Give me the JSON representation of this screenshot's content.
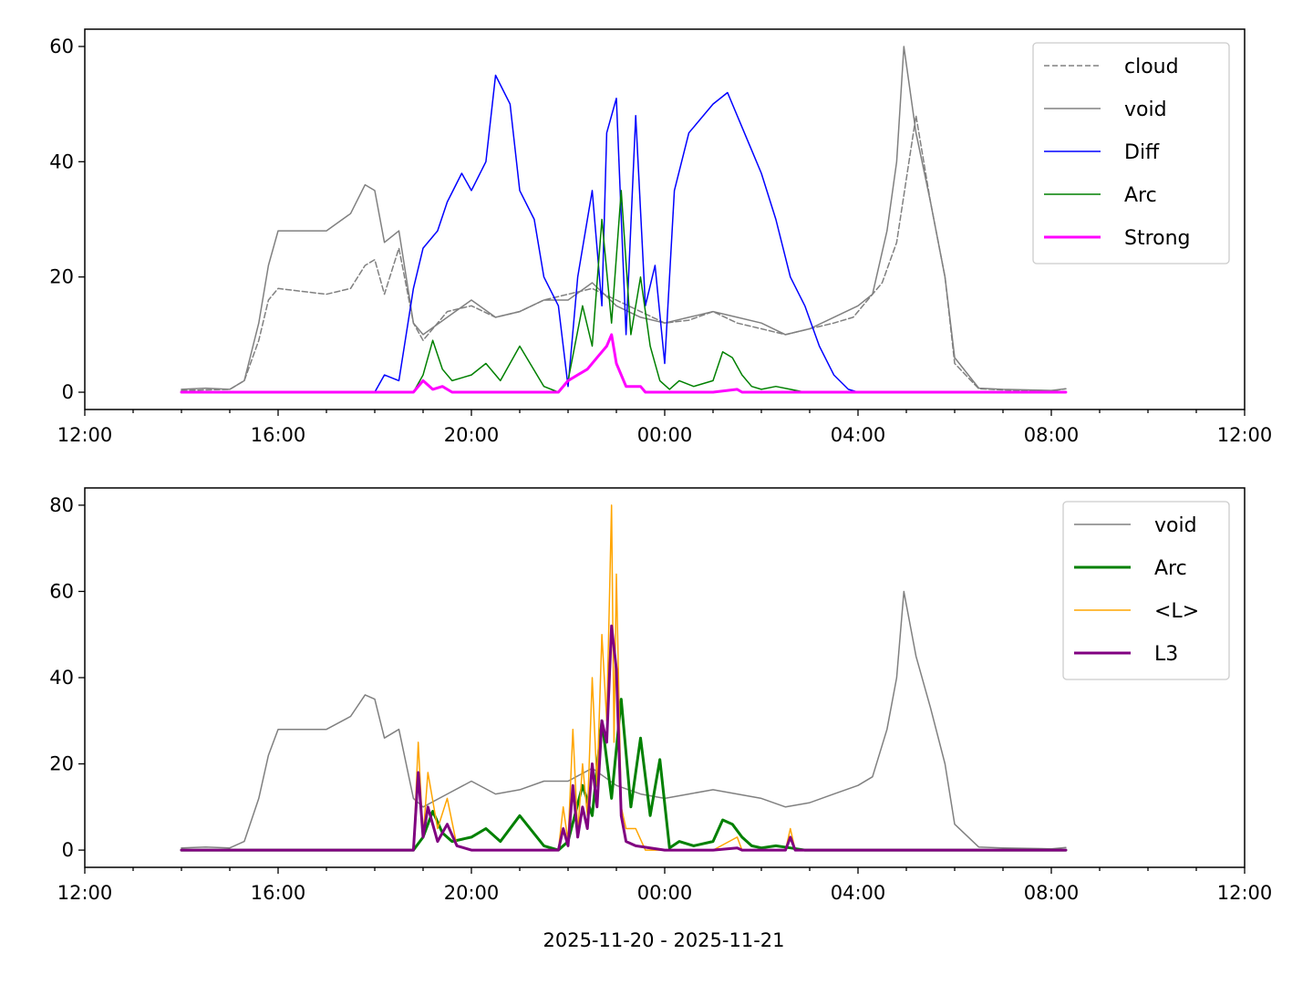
{
  "chart_data": [
    {
      "type": "line",
      "title": "",
      "xlabel": "",
      "ylabel": "",
      "x_unit": "hours since 2025-11-20 00:00",
      "xlim": [
        12,
        36
      ],
      "ylim": [
        -3,
        63
      ],
      "x_ticks": [
        {
          "value": 12,
          "label": "12:00"
        },
        {
          "value": 16,
          "label": "16:00"
        },
        {
          "value": 20,
          "label": "20:00"
        },
        {
          "value": 24,
          "label": "00:00"
        },
        {
          "value": 28,
          "label": "04:00"
        },
        {
          "value": 32,
          "label": "08:00"
        },
        {
          "value": 36,
          "label": "12:00"
        }
      ],
      "y_ticks": [
        {
          "value": 0,
          "label": "0"
        },
        {
          "value": 20,
          "label": "20"
        },
        {
          "value": 40,
          "label": "40"
        },
        {
          "value": 60,
          "label": "60"
        }
      ],
      "grid": false,
      "legend_position": "top-right",
      "series": [
        {
          "name": "cloud",
          "color": "#808080",
          "style": "dashed",
          "width": 1.5,
          "x": [
            14.0,
            15.0,
            15.3,
            15.6,
            15.8,
            16.0,
            16.5,
            17.0,
            17.5,
            17.8,
            18.0,
            18.2,
            18.5,
            18.8,
            19.0,
            19.5,
            20.0,
            20.5,
            21.0,
            21.5,
            22.0,
            22.5,
            23.0,
            23.5,
            24.0,
            24.5,
            25.0,
            25.5,
            26.0,
            26.5,
            27.0,
            27.5,
            27.9,
            28.0,
            28.5,
            28.8,
            29.0,
            29.2,
            29.5,
            29.8,
            30.0,
            30.5,
            31.0,
            32.0,
            32.3
          ],
          "y": [
            0.3,
            0.5,
            2,
            9,
            16,
            18,
            17.5,
            17,
            18,
            22,
            23,
            17,
            25,
            12,
            9,
            14,
            15,
            13,
            14,
            16,
            17,
            18,
            16,
            14,
            12,
            12.5,
            14,
            12,
            11,
            10,
            11,
            12,
            13,
            14,
            19,
            26,
            37,
            48,
            33,
            20,
            5,
            0.6,
            0.4,
            0.2,
            0.6
          ]
        },
        {
          "name": "void",
          "color": "#808080",
          "style": "solid",
          "width": 1.5,
          "x": [
            14.0,
            14.5,
            15.0,
            15.3,
            15.6,
            15.8,
            16.0,
            16.5,
            17.0,
            17.5,
            17.8,
            18.0,
            18.2,
            18.5,
            18.8,
            19.0,
            19.5,
            20.0,
            20.5,
            21.0,
            21.5,
            22.0,
            22.5,
            23.0,
            23.5,
            24.0,
            24.5,
            25.0,
            25.5,
            26.0,
            26.5,
            27.0,
            27.5,
            28.0,
            28.3,
            28.6,
            28.8,
            28.95,
            29.2,
            29.5,
            29.8,
            30.0,
            30.5,
            31.0,
            32.0,
            32.3
          ],
          "y": [
            0.5,
            0.7,
            0.5,
            2,
            12,
            22,
            28,
            28,
            28,
            31,
            36,
            35,
            26,
            28,
            12,
            10,
            13,
            16,
            13,
            14,
            16,
            16,
            19,
            15,
            13,
            12,
            13,
            14,
            13,
            12,
            10,
            11,
            13,
            15,
            17,
            28,
            40,
            60,
            45,
            33,
            20,
            6,
            0.7,
            0.5,
            0.3,
            0.6
          ]
        },
        {
          "name": "Diff",
          "color": "#0000ff",
          "style": "solid",
          "width": 1.5,
          "x": [
            18.0,
            18.2,
            18.5,
            18.8,
            19.0,
            19.3,
            19.5,
            19.8,
            20.0,
            20.3,
            20.5,
            20.8,
            21.0,
            21.3,
            21.5,
            21.8,
            22.0,
            22.2,
            22.5,
            22.7,
            22.8,
            23.0,
            23.2,
            23.4,
            23.6,
            23.8,
            24.0,
            24.2,
            24.5,
            25.0,
            25.3,
            25.6,
            25.8,
            26.0,
            26.3,
            26.6,
            26.9,
            27.2,
            27.5,
            27.8,
            28.0
          ],
          "y": [
            0,
            3,
            2,
            18,
            25,
            28,
            33,
            38,
            35,
            40,
            55,
            50,
            35,
            30,
            20,
            15,
            1,
            20,
            35,
            15,
            45,
            51,
            10,
            48,
            15,
            22,
            5,
            35,
            45,
            50,
            52,
            46,
            42,
            38,
            30,
            20,
            15,
            8,
            3,
            0.5,
            0
          ]
        },
        {
          "name": "Arc",
          "color": "#008000",
          "style": "solid",
          "width": 1.5,
          "x": [
            18.8,
            19.0,
            19.2,
            19.4,
            19.6,
            20.0,
            20.3,
            20.6,
            21.0,
            21.5,
            21.8,
            22.0,
            22.3,
            22.5,
            22.7,
            22.9,
            23.1,
            23.3,
            23.5,
            23.7,
            23.9,
            24.1,
            24.3,
            24.6,
            25.0,
            25.2,
            25.4,
            25.6,
            25.8,
            26.0,
            26.3,
            26.6,
            26.9
          ],
          "y": [
            0,
            3,
            9,
            4,
            2,
            3,
            5,
            2,
            8,
            1,
            0,
            2,
            15,
            8,
            30,
            12,
            35,
            10,
            20,
            8,
            2,
            0.5,
            2,
            1,
            2,
            7,
            6,
            3,
            1,
            0.5,
            1,
            0.5,
            0
          ]
        },
        {
          "name": "Strong",
          "color": "#ff00ff",
          "style": "solid",
          "width": 3,
          "x": [
            14.0,
            18.8,
            19.0,
            19.2,
            19.4,
            19.6,
            21.8,
            22.0,
            22.2,
            22.4,
            22.6,
            22.8,
            22.9,
            23.0,
            23.2,
            23.5,
            23.6,
            24.0,
            25.0,
            25.5,
            25.6,
            27.0,
            28.0,
            32.3
          ],
          "y": [
            0,
            0,
            2,
            0.5,
            1,
            0,
            0,
            2,
            3,
            4,
            6,
            8,
            10,
            5,
            1,
            1,
            0,
            0,
            0,
            0.5,
            0,
            0,
            0,
            0
          ]
        }
      ]
    },
    {
      "type": "line",
      "title": "",
      "xlabel": "2025-11-20 - 2025-11-21",
      "ylabel": "",
      "x_unit": "hours since 2025-11-20 00:00",
      "xlim": [
        12,
        36
      ],
      "ylim": [
        -4,
        84
      ],
      "x_ticks": [
        {
          "value": 12,
          "label": "12:00"
        },
        {
          "value": 16,
          "label": "16:00"
        },
        {
          "value": 20,
          "label": "20:00"
        },
        {
          "value": 24,
          "label": "00:00"
        },
        {
          "value": 28,
          "label": "04:00"
        },
        {
          "value": 32,
          "label": "08:00"
        },
        {
          "value": 36,
          "label": "12:00"
        }
      ],
      "y_ticks": [
        {
          "value": 0,
          "label": "0"
        },
        {
          "value": 20,
          "label": "20"
        },
        {
          "value": 40,
          "label": "40"
        },
        {
          "value": 60,
          "label": "60"
        },
        {
          "value": 80,
          "label": "80"
        }
      ],
      "grid": false,
      "legend_position": "top-right",
      "series": [
        {
          "name": "void",
          "color": "#808080",
          "style": "solid",
          "width": 1.5,
          "x": [
            14.0,
            14.5,
            15.0,
            15.3,
            15.6,
            15.8,
            16.0,
            16.5,
            17.0,
            17.5,
            17.8,
            18.0,
            18.2,
            18.5,
            18.8,
            19.0,
            19.5,
            20.0,
            20.5,
            21.0,
            21.5,
            22.0,
            22.5,
            23.0,
            23.5,
            24.0,
            24.5,
            25.0,
            25.5,
            26.0,
            26.5,
            27.0,
            27.5,
            28.0,
            28.3,
            28.6,
            28.8,
            28.95,
            29.2,
            29.5,
            29.8,
            30.0,
            30.5,
            31.0,
            32.0,
            32.3
          ],
          "y": [
            0.5,
            0.7,
            0.5,
            2,
            12,
            22,
            28,
            28,
            28,
            31,
            36,
            35,
            26,
            28,
            12,
            10,
            13,
            16,
            13,
            14,
            16,
            16,
            19,
            15,
            13,
            12,
            13,
            14,
            13,
            12,
            10,
            11,
            13,
            15,
            17,
            28,
            40,
            60,
            45,
            33,
            20,
            6,
            0.7,
            0.5,
            0.3,
            0.6
          ]
        },
        {
          "name": "Arc",
          "color": "#008000",
          "style": "solid",
          "width": 3,
          "x": [
            14.0,
            18.8,
            19.0,
            19.2,
            19.4,
            19.6,
            20.0,
            20.3,
            20.6,
            21.0,
            21.5,
            21.8,
            22.0,
            22.3,
            22.5,
            22.7,
            22.9,
            23.1,
            23.3,
            23.5,
            23.7,
            23.9,
            24.1,
            24.3,
            24.6,
            25.0,
            25.2,
            25.4,
            25.6,
            25.8,
            26.0,
            26.3,
            26.6,
            26.9,
            27.5,
            32.3
          ],
          "y": [
            0,
            0,
            3,
            9,
            4,
            2,
            3,
            5,
            2,
            8,
            1,
            0,
            2,
            15,
            8,
            30,
            12,
            35,
            10,
            26,
            8,
            21,
            0.5,
            2,
            1,
            2,
            7,
            6,
            3,
            1,
            0.5,
            1,
            0.5,
            0,
            0,
            0
          ]
        },
        {
          "name": "<L>",
          "color": "#ffa500",
          "style": "solid",
          "width": 1.5,
          "x": [
            14.0,
            18.8,
            18.9,
            19.0,
            19.1,
            19.3,
            19.5,
            19.7,
            20.0,
            21.8,
            21.9,
            22.0,
            22.1,
            22.2,
            22.3,
            22.4,
            22.5,
            22.6,
            22.7,
            22.8,
            22.9,
            22.95,
            23.0,
            23.1,
            23.2,
            23.4,
            23.6,
            24.0,
            25.0,
            25.5,
            25.6,
            26.5,
            26.6,
            26.7,
            32.3
          ],
          "y": [
            0,
            0,
            25,
            3,
            18,
            5,
            12,
            1,
            0,
            0,
            10,
            2,
            28,
            4,
            20,
            8,
            40,
            15,
            50,
            30,
            80,
            25,
            64,
            10,
            5,
            5,
            0,
            0,
            0,
            3,
            0,
            0,
            5,
            0,
            0
          ]
        },
        {
          "name": "L3",
          "color": "#800080",
          "style": "solid",
          "width": 3,
          "x": [
            14.0,
            18.8,
            18.9,
            19.0,
            19.1,
            19.3,
            19.5,
            19.7,
            20.0,
            21.8,
            21.9,
            22.0,
            22.1,
            22.2,
            22.3,
            22.4,
            22.5,
            22.6,
            22.7,
            22.8,
            22.9,
            23.0,
            23.1,
            23.2,
            23.4,
            24.0,
            25.0,
            25.5,
            25.6,
            26.5,
            26.6,
            26.7,
            32.3
          ],
          "y": [
            0,
            0,
            18,
            3,
            10,
            2,
            6,
            1,
            0,
            0,
            5,
            1,
            15,
            3,
            10,
            5,
            20,
            10,
            30,
            25,
            52,
            42,
            8,
            2,
            1,
            0,
            0,
            0.5,
            0,
            0,
            3,
            0,
            0
          ]
        }
      ]
    }
  ]
}
